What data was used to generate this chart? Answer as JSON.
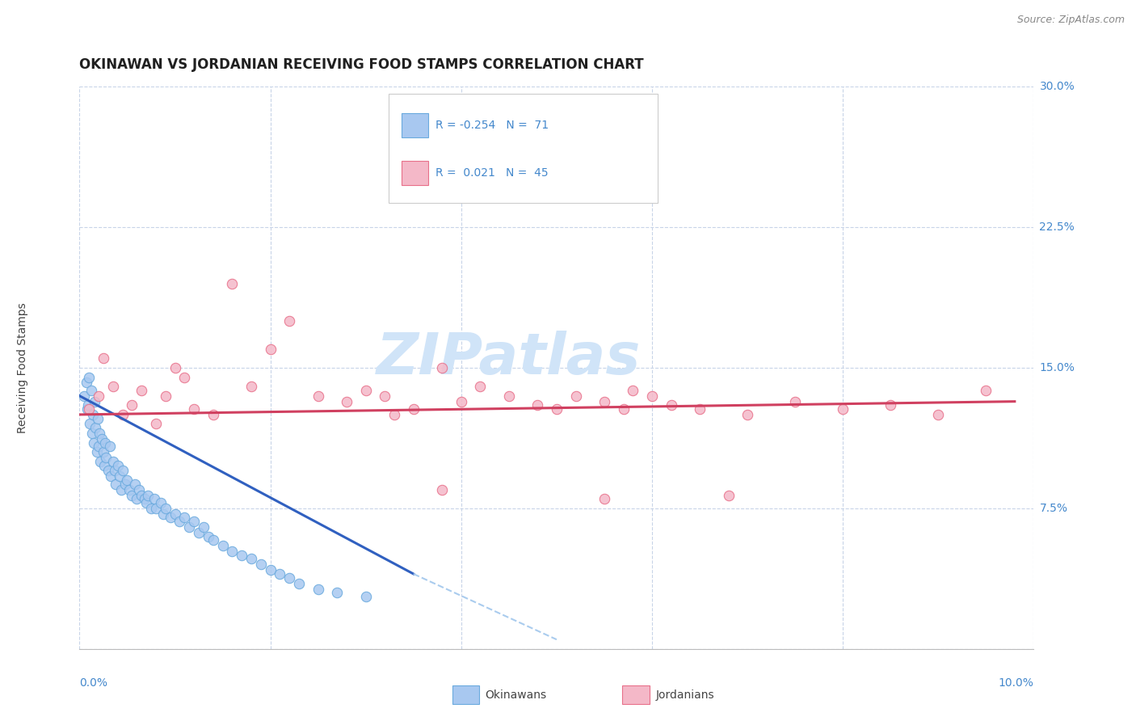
{
  "title": "OKINAWAN VS JORDANIAN RECEIVING FOOD STAMPS CORRELATION CHART",
  "source": "Source: ZipAtlas.com",
  "ylabel": "Receiving Food Stamps",
  "xlim": [
    0.0,
    10.0
  ],
  "ylim": [
    0.0,
    30.0
  ],
  "yticks": [
    0.0,
    7.5,
    15.0,
    22.5,
    30.0
  ],
  "ytick_labels": [
    "",
    "7.5%",
    "15.0%",
    "22.5%",
    "30.0%"
  ],
  "color_okinawan_fill": "#a8c8f0",
  "color_okinawan_edge": "#6aaade",
  "color_jordanian_fill": "#f4b8c8",
  "color_jordanian_edge": "#e8708a",
  "color_trend_okinawan": "#3060c0",
  "color_trend_jordanian": "#d04060",
  "color_trend_ext": "#aaccee",
  "background_color": "#ffffff",
  "grid_color": "#c8d4e8",
  "title_color": "#202020",
  "source_color": "#888888",
  "axis_label_color": "#4488cc",
  "watermark_color": "#d0e4f8",
  "watermark_text": "ZIPatlas",
  "okinawan_x": [
    0.05,
    0.07,
    0.08,
    0.09,
    0.1,
    0.11,
    0.12,
    0.13,
    0.14,
    0.15,
    0.16,
    0.17,
    0.18,
    0.19,
    0.2,
    0.21,
    0.22,
    0.23,
    0.25,
    0.26,
    0.27,
    0.28,
    0.3,
    0.32,
    0.33,
    0.35,
    0.37,
    0.38,
    0.4,
    0.42,
    0.44,
    0.45,
    0.48,
    0.5,
    0.52,
    0.55,
    0.58,
    0.6,
    0.62,
    0.65,
    0.68,
    0.7,
    0.72,
    0.75,
    0.78,
    0.8,
    0.85,
    0.88,
    0.9,
    0.95,
    1.0,
    1.05,
    1.1,
    1.15,
    1.2,
    1.25,
    1.3,
    1.35,
    1.4,
    1.5,
    1.6,
    1.7,
    1.8,
    1.9,
    2.0,
    2.1,
    2.2,
    2.3,
    2.5,
    2.7,
    3.0
  ],
  "okinawan_y": [
    13.5,
    14.2,
    12.8,
    13.0,
    14.5,
    12.0,
    13.8,
    11.5,
    12.5,
    11.0,
    13.2,
    11.8,
    10.5,
    12.3,
    10.8,
    11.5,
    10.0,
    11.2,
    10.5,
    9.8,
    11.0,
    10.2,
    9.5,
    10.8,
    9.2,
    10.0,
    9.5,
    8.8,
    9.8,
    9.2,
    8.5,
    9.5,
    8.8,
    9.0,
    8.5,
    8.2,
    8.8,
    8.0,
    8.5,
    8.2,
    8.0,
    7.8,
    8.2,
    7.5,
    8.0,
    7.5,
    7.8,
    7.2,
    7.5,
    7.0,
    7.2,
    6.8,
    7.0,
    6.5,
    6.8,
    6.2,
    6.5,
    6.0,
    5.8,
    5.5,
    5.2,
    5.0,
    4.8,
    4.5,
    4.2,
    4.0,
    3.8,
    3.5,
    3.2,
    3.0,
    2.8
  ],
  "jordanian_x": [
    0.1,
    0.2,
    0.25,
    0.35,
    0.45,
    0.55,
    0.65,
    0.8,
    0.9,
    1.0,
    1.1,
    1.2,
    1.4,
    1.6,
    1.8,
    2.0,
    2.2,
    2.5,
    2.8,
    3.0,
    3.2,
    3.5,
    3.8,
    4.0,
    4.2,
    4.5,
    4.8,
    5.0,
    5.2,
    5.5,
    5.8,
    6.0,
    6.2,
    6.5,
    7.0,
    7.5,
    8.0,
    8.5,
    9.0,
    9.5,
    3.3,
    3.8,
    5.5,
    5.7,
    6.8
  ],
  "jordanian_y": [
    12.8,
    13.5,
    15.5,
    14.0,
    12.5,
    13.0,
    13.8,
    12.0,
    13.5,
    15.0,
    14.5,
    12.8,
    12.5,
    19.5,
    14.0,
    16.0,
    17.5,
    13.5,
    13.2,
    13.8,
    13.5,
    12.8,
    15.0,
    13.2,
    14.0,
    13.5,
    13.0,
    12.8,
    13.5,
    13.2,
    13.8,
    13.5,
    13.0,
    12.8,
    12.5,
    13.2,
    12.8,
    13.0,
    12.5,
    13.8,
    12.5,
    8.5,
    8.0,
    12.8,
    8.2
  ],
  "trend_ok_x0": 0.0,
  "trend_ok_y0": 13.5,
  "trend_ok_x1": 3.5,
  "trend_ok_y1": 4.0,
  "trend_ok_ext_x1": 5.0,
  "trend_ok_ext_y1": 0.5,
  "trend_jo_x0": 0.0,
  "trend_jo_y0": 12.5,
  "trend_jo_x1": 9.8,
  "trend_jo_y1": 13.2
}
